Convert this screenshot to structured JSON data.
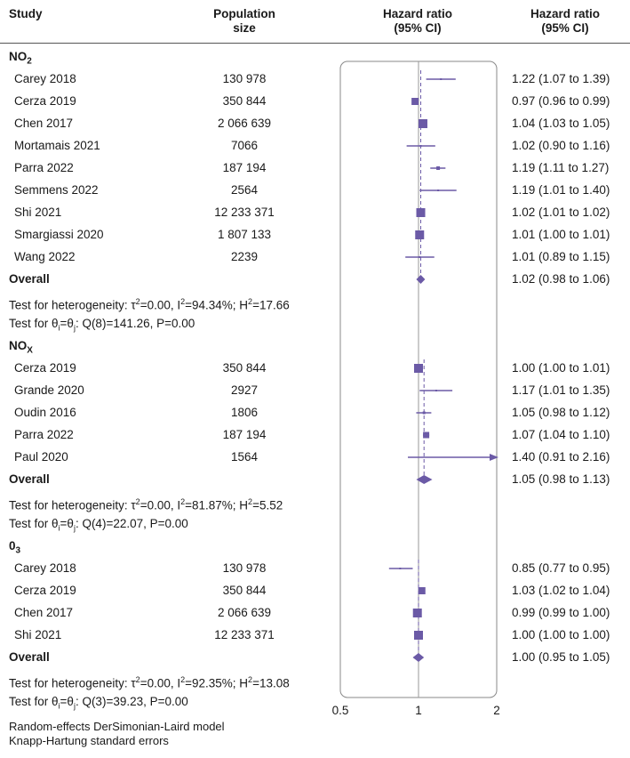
{
  "headers": {
    "study": "Study",
    "population_l1": "Population",
    "population_l2": "size",
    "plot_l1": "Hazard ratio",
    "plot_l2": "(95% CI)",
    "ci_l1": "Hazard ratio",
    "ci_l2": "(95% CI)"
  },
  "groups": [
    {
      "name": "NO",
      "sub": "2",
      "sub_pos": "sub",
      "studies": [
        {
          "study": "Carey 2018",
          "pop": "130 978",
          "hr_text": "1.22 (1.07 to 1.39)",
          "hr": 1.22,
          "lo": 1.07,
          "hi": 1.39,
          "w": 2
        },
        {
          "study": "Cerza 2019",
          "pop": "350 844",
          "hr_text": "0.97 (0.96 to 0.99)",
          "hr": 0.97,
          "lo": 0.96,
          "hi": 0.99,
          "w": 8
        },
        {
          "study": "Chen 2017",
          "pop": "2 066 639",
          "hr_text": "1.04 (1.03 to 1.05)",
          "hr": 1.04,
          "lo": 1.03,
          "hi": 1.05,
          "w": 10
        },
        {
          "study": "Mortamais 2021",
          "pop": "7066",
          "hr_text": "1.02 (0.90 to 1.16)",
          "hr": 1.02,
          "lo": 0.9,
          "hi": 1.16,
          "w": 2
        },
        {
          "study": "Parra 2022",
          "pop": "187 194",
          "hr_text": "1.19 (1.11 to 1.27)",
          "hr": 1.19,
          "lo": 1.11,
          "hi": 1.27,
          "w": 4
        },
        {
          "study": "Semmens 2022",
          "pop": "2564",
          "hr_text": "1.19 (1.01 to 1.40)",
          "hr": 1.19,
          "lo": 1.01,
          "hi": 1.4,
          "w": 2
        },
        {
          "study": "Shi 2021",
          "pop": "12 233 371",
          "hr_text": "1.02 (1.01 to 1.02)",
          "hr": 1.02,
          "lo": 1.01,
          "hi": 1.02,
          "w": 10
        },
        {
          "study": "Smargiassi 2020",
          "pop": "1 807 133",
          "hr_text": "1.01 (1.00 to 1.01)",
          "hr": 1.01,
          "lo": 1.0,
          "hi": 1.01,
          "w": 10
        },
        {
          "study": "Wang 2022",
          "pop": "2239",
          "hr_text": "1.01 (0.89 to 1.15)",
          "hr": 1.01,
          "lo": 0.89,
          "hi": 1.15,
          "w": 2
        }
      ],
      "overall": {
        "label": "Overall",
        "hr_text": "1.02 (0.98 to 1.06)",
        "hr": 1.02,
        "lo": 0.98,
        "hi": 1.06
      },
      "het_prefix": "Test for heterogeneity: τ",
      "het_mid1": "=0.00, I",
      "het_mid2": "=94.34%; H",
      "het_end": "=17.66",
      "test_prefix": "Test for θ",
      "test_eq": "=θ",
      "test_rest": ": Q(8)=141.26, P=0.00"
    },
    {
      "name": "NO",
      "sub": "X",
      "sub_pos": "sub",
      "studies": [
        {
          "study": "Cerza 2019",
          "pop": "350 844",
          "hr_text": "1.00 (1.00 to 1.01)",
          "hr": 1.0,
          "lo": 1.0,
          "hi": 1.01,
          "w": 10
        },
        {
          "study": "Grande 2020",
          "pop": "2927",
          "hr_text": "1.17 (1.01 to 1.35)",
          "hr": 1.17,
          "lo": 1.01,
          "hi": 1.35,
          "w": 2
        },
        {
          "study": "Oudin 2016",
          "pop": "1806",
          "hr_text": "1.05 (0.98 to 1.12)",
          "hr": 1.05,
          "lo": 0.98,
          "hi": 1.12,
          "w": 3
        },
        {
          "study": "Parra 2022",
          "pop": "187 194",
          "hr_text": "1.07 (1.04 to 1.10)",
          "hr": 1.07,
          "lo": 1.04,
          "hi": 1.1,
          "w": 7
        },
        {
          "study": "Paul 2020",
          "pop": "1564",
          "hr_text": "1.40 (0.91 to 2.16)",
          "hr": 1.4,
          "lo": 0.91,
          "hi": 2.16,
          "w": 1,
          "arrow": true
        }
      ],
      "overall": {
        "label": "Overall",
        "hr_text": "1.05 (0.98 to 1.13)",
        "hr": 1.05,
        "lo": 0.98,
        "hi": 1.13
      },
      "het_prefix": "Test for heterogeneity: τ",
      "het_mid1": "=0.00, I",
      "het_mid2": "=81.87%; H",
      "het_end": "=5.52",
      "test_prefix": "Test for θ",
      "test_eq": "=θ",
      "test_rest": ": Q(4)=22.07, P=0.00"
    },
    {
      "name": "0",
      "sub": "3",
      "sub_pos": "sub",
      "studies": [
        {
          "study": "Carey 2018",
          "pop": "130 978",
          "hr_text": "0.85 (0.77 to 0.95)",
          "hr": 0.85,
          "lo": 0.77,
          "hi": 0.95,
          "w": 2
        },
        {
          "study": "Cerza 2019",
          "pop": "350 844",
          "hr_text": "1.03 (1.02 to 1.04)",
          "hr": 1.03,
          "lo": 1.02,
          "hi": 1.04,
          "w": 8
        },
        {
          "study": "Chen 2017",
          "pop": "2 066 639",
          "hr_text": "0.99 (0.99 to 1.00)",
          "hr": 0.99,
          "lo": 0.99,
          "hi": 1.0,
          "w": 10
        },
        {
          "study": "Shi 2021",
          "pop": "12 233 371",
          "hr_text": "1.00 (1.00 to 1.00)",
          "hr": 1.0,
          "lo": 1.0,
          "hi": 1.0,
          "w": 10
        }
      ],
      "overall": {
        "label": "Overall",
        "hr_text": "1.00 (0.95 to 1.05)",
        "hr": 1.0,
        "lo": 0.95,
        "hi": 1.05
      },
      "het_prefix": "Test for heterogeneity: τ",
      "het_mid1": "=0.00, I",
      "het_mid2": "=92.35%; H",
      "het_end": "=13.08",
      "test_prefix": "Test for θ",
      "test_eq": "=θ",
      "test_rest": ": Q(3)=39.23, P=0.00"
    }
  ],
  "footnotes": [
    "Random-effects DerSimonian-Laird model",
    "Knapp-Hartung standard errors"
  ],
  "chart_data": {
    "type": "forest",
    "xscale": "log",
    "xlim": [
      0.5,
      2
    ],
    "xticks": [
      0.5,
      1,
      2
    ],
    "xtick_labels": [
      "0.5",
      "1",
      "2"
    ],
    "reference_line": 1,
    "colors": {
      "marker": "#6b5aa6",
      "line": "#6b5aa6",
      "axis": "#555555",
      "frame": "#888888"
    }
  }
}
